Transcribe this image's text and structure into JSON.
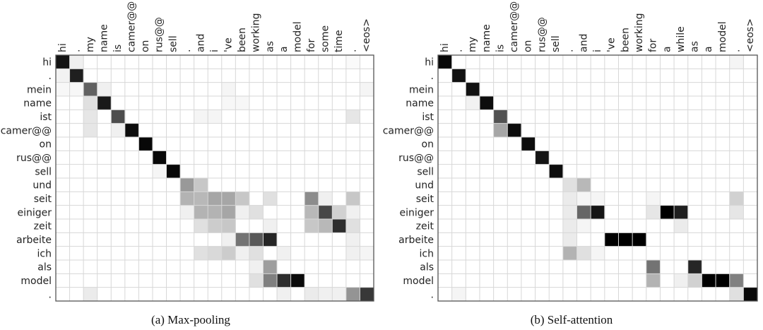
{
  "chart_data": [
    {
      "type": "heatmap",
      "caption": "(a) Max-pooling",
      "x_labels": [
        "hi",
        ".",
        "my",
        "name",
        "is",
        "camer@@",
        "on",
        "rus@@",
        "sell",
        ".",
        "and",
        "i",
        "'ve",
        "been",
        "working",
        "as",
        "a",
        "model",
        "for",
        "some",
        "time",
        ".",
        "<eos>"
      ],
      "y_labels": [
        "hi",
        ".",
        "mein",
        "name",
        "ist",
        "camer@@",
        "on",
        "rus@@",
        "sell",
        "und",
        "seit",
        "einiger",
        "zeit",
        "arbeite",
        "ich",
        "als",
        "model",
        "."
      ],
      "values": [
        [
          0.92,
          0.06,
          0.0,
          0.0,
          0.0,
          0.0,
          0.0,
          0.0,
          0.0,
          0.0,
          0.0,
          0.0,
          0.0,
          0.0,
          0.0,
          0.0,
          0.0,
          0.0,
          0.0,
          0.0,
          0.0,
          0.02,
          0.0
        ],
        [
          0.05,
          0.88,
          0.0,
          0.0,
          0.0,
          0.0,
          0.0,
          0.0,
          0.0,
          0.0,
          0.0,
          0.0,
          0.0,
          0.0,
          0.0,
          0.0,
          0.0,
          0.0,
          0.0,
          0.0,
          0.0,
          0.0,
          0.0
        ],
        [
          0.03,
          0.03,
          0.62,
          0.06,
          0.0,
          0.0,
          0.0,
          0.0,
          0.0,
          0.0,
          0.0,
          0.0,
          0.04,
          0.0,
          0.0,
          0.0,
          0.0,
          0.0,
          0.0,
          0.0,
          0.0,
          0.0,
          0.04
        ],
        [
          0.0,
          0.0,
          0.12,
          0.9,
          0.0,
          0.0,
          0.0,
          0.0,
          0.0,
          0.0,
          0.0,
          0.0,
          0.03,
          0.03,
          0.0,
          0.0,
          0.0,
          0.0,
          0.0,
          0.0,
          0.0,
          0.0,
          0.0
        ],
        [
          0.0,
          0.0,
          0.1,
          0.0,
          0.7,
          0.0,
          0.0,
          0.0,
          0.0,
          0.0,
          0.04,
          0.04,
          0.0,
          0.0,
          0.0,
          0.0,
          0.0,
          0.0,
          0.0,
          0.0,
          0.0,
          0.1,
          0.0
        ],
        [
          0.0,
          0.0,
          0.1,
          0.0,
          0.06,
          0.95,
          0.0,
          0.0,
          0.0,
          0.0,
          0.0,
          0.0,
          0.0,
          0.0,
          0.0,
          0.0,
          0.0,
          0.0,
          0.0,
          0.0,
          0.0,
          0.0,
          0.0
        ],
        [
          0.0,
          0.0,
          0.0,
          0.0,
          0.0,
          0.0,
          0.97,
          0.0,
          0.0,
          0.0,
          0.0,
          0.0,
          0.0,
          0.0,
          0.0,
          0.0,
          0.0,
          0.0,
          0.0,
          0.0,
          0.0,
          0.0,
          0.0
        ],
        [
          0.0,
          0.0,
          0.0,
          0.0,
          0.0,
          0.0,
          0.0,
          0.97,
          0.0,
          0.0,
          0.0,
          0.0,
          0.0,
          0.0,
          0.0,
          0.0,
          0.0,
          0.0,
          0.0,
          0.0,
          0.0,
          0.0,
          0.0
        ],
        [
          0.0,
          0.0,
          0.0,
          0.0,
          0.0,
          0.0,
          0.0,
          0.04,
          0.97,
          0.0,
          0.0,
          0.0,
          0.0,
          0.0,
          0.0,
          0.0,
          0.0,
          0.0,
          0.0,
          0.0,
          0.0,
          0.0,
          0.0
        ],
        [
          0.0,
          0.0,
          0.0,
          0.0,
          0.0,
          0.0,
          0.0,
          0.0,
          0.0,
          0.4,
          0.22,
          0.0,
          0.0,
          0.0,
          0.0,
          0.0,
          0.0,
          0.0,
          0.0,
          0.0,
          0.0,
          0.0,
          0.0
        ],
        [
          0.0,
          0.0,
          0.0,
          0.0,
          0.0,
          0.0,
          0.0,
          0.0,
          0.0,
          0.3,
          0.28,
          0.35,
          0.35,
          0.22,
          0.0,
          0.12,
          0.0,
          0.0,
          0.45,
          0.06,
          0.0,
          0.22,
          0.0
        ],
        [
          0.0,
          0.0,
          0.0,
          0.0,
          0.0,
          0.0,
          0.0,
          0.0,
          0.0,
          0.06,
          0.3,
          0.3,
          0.35,
          0.06,
          0.12,
          0.0,
          0.0,
          0.0,
          0.28,
          0.72,
          0.18,
          0.06,
          0.0
        ],
        [
          0.0,
          0.0,
          0.0,
          0.0,
          0.0,
          0.0,
          0.0,
          0.0,
          0.0,
          0.0,
          0.12,
          0.2,
          0.22,
          0.0,
          0.0,
          0.06,
          0.0,
          0.0,
          0.22,
          0.28,
          0.82,
          0.12,
          0.0
        ],
        [
          0.0,
          0.0,
          0.0,
          0.0,
          0.0,
          0.0,
          0.0,
          0.0,
          0.0,
          0.0,
          0.0,
          0.0,
          0.06,
          0.55,
          0.65,
          0.85,
          0.0,
          0.0,
          0.0,
          0.0,
          0.0,
          0.06,
          0.0
        ],
        [
          0.0,
          0.0,
          0.0,
          0.0,
          0.0,
          0.0,
          0.0,
          0.0,
          0.0,
          0.0,
          0.12,
          0.15,
          0.2,
          0.06,
          0.12,
          0.0,
          0.06,
          0.0,
          0.0,
          0.0,
          0.0,
          0.06,
          0.04
        ],
        [
          0.0,
          0.0,
          0.0,
          0.0,
          0.0,
          0.0,
          0.0,
          0.0,
          0.0,
          0.0,
          0.0,
          0.0,
          0.0,
          0.0,
          0.06,
          0.38,
          0.0,
          0.0,
          0.0,
          0.0,
          0.0,
          0.0,
          0.0
        ],
        [
          0.0,
          0.0,
          0.0,
          0.0,
          0.0,
          0.0,
          0.0,
          0.0,
          0.0,
          0.0,
          0.0,
          0.0,
          0.0,
          0.0,
          0.12,
          0.5,
          0.82,
          0.96,
          0.0,
          0.0,
          0.0,
          0.0,
          0.0
        ],
        [
          0.0,
          0.0,
          0.08,
          0.0,
          0.0,
          0.0,
          0.0,
          0.0,
          0.0,
          0.0,
          0.0,
          0.0,
          0.0,
          0.0,
          0.0,
          0.0,
          0.06,
          0.0,
          0.08,
          0.06,
          0.06,
          0.42,
          0.78
        ]
      ],
      "colormap": {
        "low": "#ffffff",
        "high": "#000000"
      },
      "grid": true,
      "legend": "none"
    },
    {
      "type": "heatmap",
      "caption": "(b) Self-attention",
      "x_labels": [
        "hi",
        ".",
        "my",
        "name",
        "is",
        "camer@@",
        "on",
        "rus@@",
        "sell",
        ".",
        "and",
        "i",
        "'ve",
        "been",
        "working",
        "for",
        "a",
        "while",
        "as",
        "a",
        "model",
        ".",
        "<eos>"
      ],
      "y_labels": [
        "hi",
        ".",
        "mein",
        "name",
        "ist",
        "camer@@",
        "on",
        "rus@@",
        "sell",
        "und",
        "seit",
        "einiger",
        "zeit",
        "arbeite",
        "ich",
        "als",
        "model",
        "."
      ],
      "values": [
        [
          0.97,
          0.0,
          0.0,
          0.0,
          0.0,
          0.0,
          0.0,
          0.0,
          0.0,
          0.0,
          0.0,
          0.0,
          0.0,
          0.0,
          0.0,
          0.0,
          0.0,
          0.0,
          0.0,
          0.0,
          0.0,
          0.04,
          0.0
        ],
        [
          0.0,
          0.93,
          0.0,
          0.0,
          0.0,
          0.0,
          0.0,
          0.0,
          0.0,
          0.0,
          0.0,
          0.0,
          0.0,
          0.0,
          0.0,
          0.0,
          0.0,
          0.0,
          0.0,
          0.0,
          0.0,
          0.0,
          0.0
        ],
        [
          0.0,
          0.0,
          0.93,
          0.0,
          0.0,
          0.0,
          0.0,
          0.0,
          0.0,
          0.0,
          0.0,
          0.0,
          0.0,
          0.0,
          0.0,
          0.0,
          0.0,
          0.0,
          0.0,
          0.0,
          0.0,
          0.0,
          0.0
        ],
        [
          0.0,
          0.0,
          0.05,
          0.95,
          0.0,
          0.0,
          0.0,
          0.0,
          0.0,
          0.0,
          0.0,
          0.0,
          0.0,
          0.0,
          0.0,
          0.0,
          0.0,
          0.0,
          0.0,
          0.0,
          0.0,
          0.0,
          0.0
        ],
        [
          0.0,
          0.0,
          0.0,
          0.0,
          0.68,
          0.0,
          0.0,
          0.0,
          0.0,
          0.0,
          0.0,
          0.0,
          0.0,
          0.0,
          0.0,
          0.0,
          0.0,
          0.0,
          0.0,
          0.0,
          0.0,
          0.0,
          0.0
        ],
        [
          0.0,
          0.0,
          0.0,
          0.0,
          0.35,
          0.95,
          0.0,
          0.0,
          0.0,
          0.0,
          0.0,
          0.0,
          0.0,
          0.0,
          0.0,
          0.0,
          0.0,
          0.0,
          0.0,
          0.0,
          0.0,
          0.0,
          0.0
        ],
        [
          0.0,
          0.0,
          0.0,
          0.0,
          0.0,
          0.0,
          0.95,
          0.0,
          0.0,
          0.0,
          0.0,
          0.0,
          0.0,
          0.0,
          0.0,
          0.0,
          0.0,
          0.0,
          0.0,
          0.0,
          0.0,
          0.0,
          0.0
        ],
        [
          0.0,
          0.0,
          0.0,
          0.0,
          0.0,
          0.0,
          0.0,
          0.92,
          0.0,
          0.0,
          0.0,
          0.0,
          0.0,
          0.0,
          0.0,
          0.0,
          0.0,
          0.0,
          0.0,
          0.0,
          0.0,
          0.0,
          0.0
        ],
        [
          0.0,
          0.0,
          0.0,
          0.0,
          0.0,
          0.0,
          0.0,
          0.0,
          0.95,
          0.0,
          0.0,
          0.0,
          0.0,
          0.0,
          0.0,
          0.0,
          0.0,
          0.0,
          0.0,
          0.0,
          0.0,
          0.0,
          0.0
        ],
        [
          0.0,
          0.0,
          0.0,
          0.0,
          0.0,
          0.0,
          0.0,
          0.0,
          0.0,
          0.12,
          0.28,
          0.0,
          0.0,
          0.0,
          0.0,
          0.0,
          0.0,
          0.0,
          0.0,
          0.0,
          0.0,
          0.0,
          0.0
        ],
        [
          0.0,
          0.0,
          0.0,
          0.0,
          0.0,
          0.0,
          0.0,
          0.0,
          0.0,
          0.08,
          0.04,
          0.04,
          0.0,
          0.0,
          0.0,
          0.04,
          0.0,
          0.0,
          0.0,
          0.0,
          0.0,
          0.18,
          0.0
        ],
        [
          0.0,
          0.0,
          0.0,
          0.0,
          0.0,
          0.0,
          0.0,
          0.0,
          0.0,
          0.08,
          0.6,
          0.92,
          0.0,
          0.0,
          0.0,
          0.1,
          1.0,
          0.88,
          0.0,
          0.0,
          0.0,
          0.1,
          0.0
        ],
        [
          0.0,
          0.0,
          0.0,
          0.0,
          0.0,
          0.0,
          0.0,
          0.0,
          0.0,
          0.08,
          0.04,
          0.0,
          0.0,
          0.0,
          0.0,
          0.0,
          0.0,
          0.08,
          0.0,
          0.0,
          0.0,
          0.0,
          0.0
        ],
        [
          0.0,
          0.0,
          0.0,
          0.0,
          0.0,
          0.0,
          0.0,
          0.0,
          0.0,
          0.08,
          0.0,
          0.0,
          1.0,
          1.0,
          1.0,
          0.0,
          0.0,
          0.0,
          0.0,
          0.0,
          0.0,
          0.0,
          0.0
        ],
        [
          0.0,
          0.0,
          0.0,
          0.0,
          0.0,
          0.0,
          0.0,
          0.0,
          0.0,
          0.3,
          0.12,
          0.04,
          0.0,
          0.0,
          0.0,
          0.0,
          0.0,
          0.0,
          0.0,
          0.0,
          0.0,
          0.0,
          0.0
        ],
        [
          0.0,
          0.0,
          0.0,
          0.0,
          0.0,
          0.0,
          0.0,
          0.0,
          0.0,
          0.0,
          0.0,
          0.0,
          0.0,
          0.0,
          0.0,
          0.55,
          0.0,
          0.0,
          0.85,
          0.0,
          0.0,
          0.0,
          0.0
        ],
        [
          0.0,
          0.0,
          0.0,
          0.0,
          0.0,
          0.0,
          0.0,
          0.0,
          0.0,
          0.0,
          0.0,
          0.0,
          0.0,
          0.0,
          0.0,
          0.3,
          0.0,
          0.06,
          0.18,
          1.0,
          1.0,
          0.5,
          0.0
        ],
        [
          0.0,
          0.04,
          0.0,
          0.0,
          0.0,
          0.0,
          0.0,
          0.0,
          0.0,
          0.0,
          0.0,
          0.0,
          0.0,
          0.0,
          0.0,
          0.0,
          0.0,
          0.0,
          0.0,
          0.0,
          0.0,
          0.12,
          0.97
        ]
      ],
      "colormap": {
        "low": "#ffffff",
        "high": "#000000"
      },
      "grid": true,
      "legend": "none"
    }
  ]
}
